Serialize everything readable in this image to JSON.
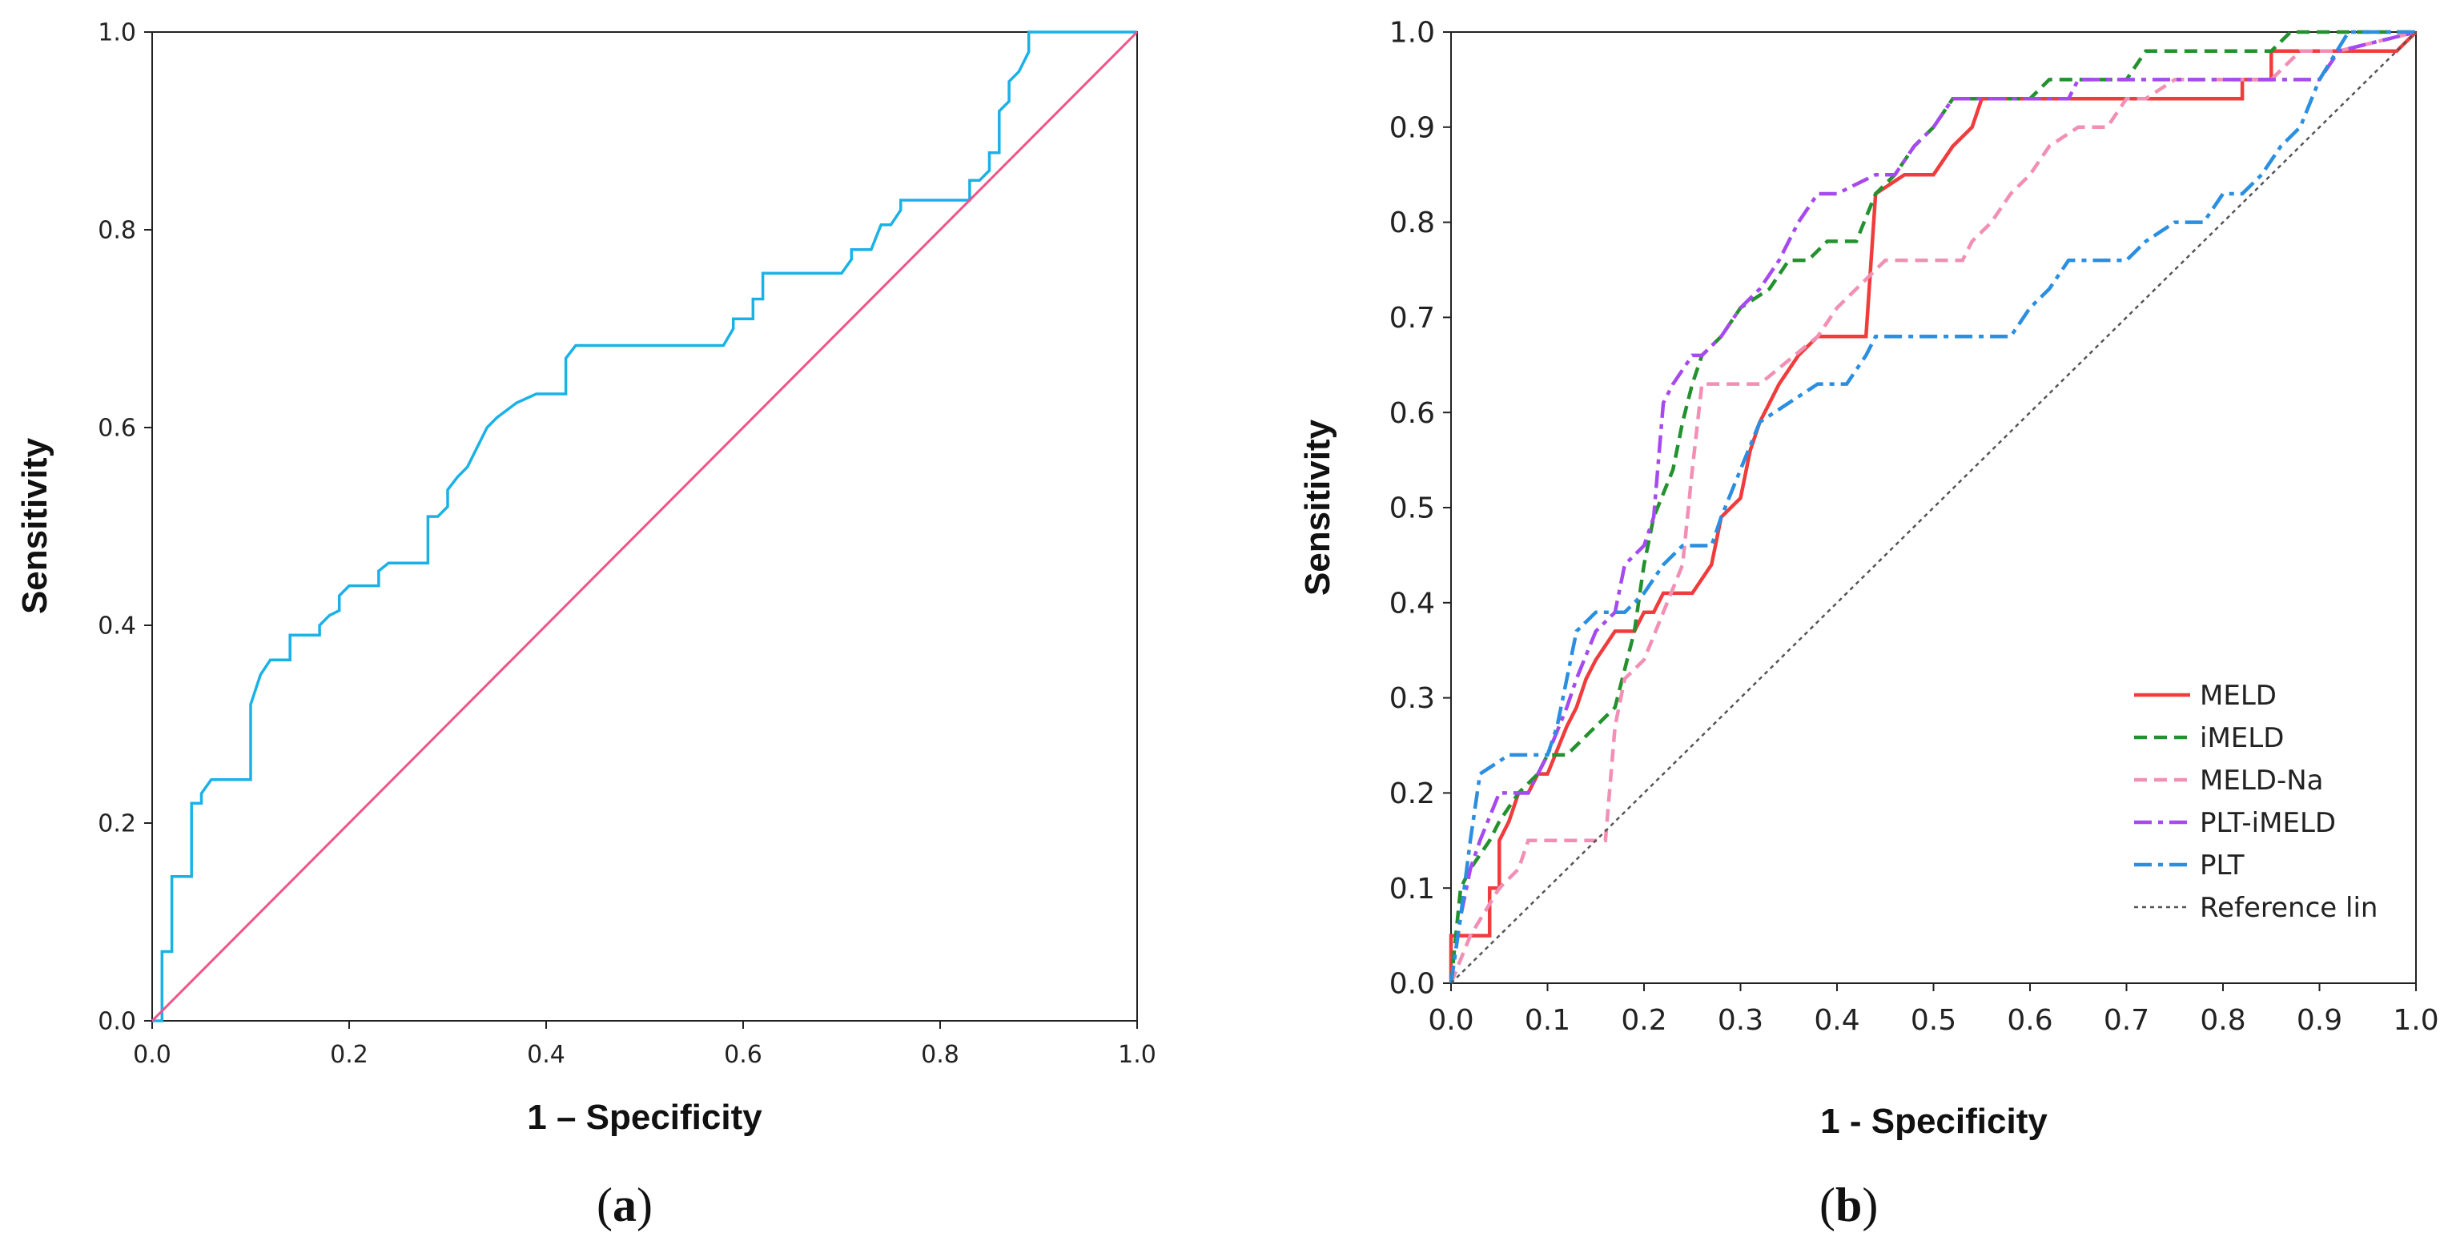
{
  "chart_data": [
    {
      "type": "line",
      "panel_caption_open": "(",
      "panel_caption_letter": "a",
      "panel_caption_close": ")",
      "xlabel": "1 – Specificity",
      "ylabel": "Sensitivity",
      "xlim": [
        0,
        1
      ],
      "ylim": [
        0,
        1
      ],
      "xticks": [
        "0.0",
        "0.2",
        "0.4",
        "0.6",
        "0.8",
        "1.0"
      ],
      "yticks": [
        "0.0",
        "0.2",
        "0.4",
        "0.6",
        "0.8",
        "1.0"
      ],
      "colors": {
        "roc": "#1ab2e6",
        "reference": "#f0548a"
      },
      "series": [
        {
          "name": "ROC",
          "x": [
            0.0,
            0.01,
            0.01,
            0.02,
            0.02,
            0.02,
            0.04,
            0.04,
            0.05,
            0.05,
            0.06,
            0.1,
            0.1,
            0.11,
            0.12,
            0.14,
            0.14,
            0.17,
            0.17,
            0.18,
            0.19,
            0.19,
            0.2,
            0.23,
            0.23,
            0.24,
            0.28,
            0.28,
            0.29,
            0.3,
            0.3,
            0.31,
            0.32,
            0.33,
            0.34,
            0.35,
            0.37,
            0.39,
            0.42,
            0.42,
            0.43,
            0.58,
            0.59,
            0.59,
            0.61,
            0.61,
            0.62,
            0.62,
            0.7,
            0.71,
            0.71,
            0.73,
            0.74,
            0.75,
            0.76,
            0.76,
            0.8,
            0.83,
            0.83,
            0.84,
            0.85,
            0.85,
            0.86,
            0.86,
            0.87,
            0.87,
            0.88,
            0.89,
            0.89,
            1.0
          ],
          "y": [
            0.0,
            0.0,
            0.07,
            0.07,
            0.1,
            0.146,
            0.146,
            0.22,
            0.22,
            0.23,
            0.244,
            0.244,
            0.32,
            0.35,
            0.365,
            0.365,
            0.39,
            0.39,
            0.4,
            0.41,
            0.415,
            0.43,
            0.44,
            0.44,
            0.455,
            0.463,
            0.463,
            0.51,
            0.51,
            0.52,
            0.537,
            0.55,
            0.56,
            0.58,
            0.6,
            0.61,
            0.625,
            0.634,
            0.634,
            0.67,
            0.683,
            0.683,
            0.7,
            0.71,
            0.71,
            0.73,
            0.73,
            0.756,
            0.756,
            0.77,
            0.78,
            0.78,
            0.805,
            0.805,
            0.82,
            0.83,
            0.83,
            0.83,
            0.85,
            0.85,
            0.86,
            0.878,
            0.878,
            0.92,
            0.93,
            0.95,
            0.96,
            0.98,
            1.0,
            1.0
          ]
        },
        {
          "name": "Reference",
          "x": [
            0,
            1
          ],
          "y": [
            0,
            1
          ]
        }
      ]
    },
    {
      "type": "line",
      "panel_caption_open": "(",
      "panel_caption_letter": "b",
      "panel_caption_close": ")",
      "xlabel": "1 - Specificity",
      "ylabel": "Sensitivity",
      "xlim": [
        0,
        1
      ],
      "ylim": [
        0,
        1
      ],
      "xticks": [
        "0.0",
        "0.1",
        "0.2",
        "0.3",
        "0.4",
        "0.5",
        "0.6",
        "0.7",
        "0.8",
        "0.9",
        "1.0"
      ],
      "yticks": [
        "0.0",
        "0.1",
        "0.2",
        "0.3",
        "0.4",
        "0.5",
        "0.6",
        "0.7",
        "0.8",
        "0.9",
        "1.0"
      ],
      "legend_position": "bottom-right",
      "series": [
        {
          "name": "MELD",
          "color": "#f03c3c",
          "dash": "solid",
          "x": [
            0.0,
            0.0,
            0.01,
            0.04,
            0.04,
            0.05,
            0.05,
            0.06,
            0.07,
            0.08,
            0.09,
            0.1,
            0.12,
            0.13,
            0.14,
            0.15,
            0.17,
            0.19,
            0.2,
            0.21,
            0.22,
            0.24,
            0.25,
            0.27,
            0.28,
            0.3,
            0.31,
            0.32,
            0.33,
            0.34,
            0.36,
            0.38,
            0.43,
            0.44,
            0.47,
            0.5,
            0.52,
            0.54,
            0.55,
            0.57,
            0.82,
            0.82,
            0.85,
            0.85,
            0.98,
            1.0
          ],
          "y": [
            0.0,
            0.05,
            0.05,
            0.05,
            0.1,
            0.1,
            0.15,
            0.17,
            0.2,
            0.2,
            0.22,
            0.22,
            0.27,
            0.29,
            0.32,
            0.34,
            0.37,
            0.37,
            0.39,
            0.39,
            0.41,
            0.41,
            0.41,
            0.44,
            0.49,
            0.51,
            0.56,
            0.59,
            0.61,
            0.63,
            0.66,
            0.68,
            0.68,
            0.83,
            0.85,
            0.85,
            0.88,
            0.9,
            0.93,
            0.93,
            0.93,
            0.95,
            0.95,
            0.98,
            0.98,
            1.0
          ]
        },
        {
          "name": "iMELD",
          "color": "#22912e",
          "dash": "dashed",
          "x": [
            0.0,
            0.01,
            0.02,
            0.04,
            0.05,
            0.07,
            0.09,
            0.1,
            0.12,
            0.15,
            0.17,
            0.19,
            0.2,
            0.21,
            0.23,
            0.24,
            0.25,
            0.26,
            0.28,
            0.3,
            0.33,
            0.35,
            0.37,
            0.39,
            0.42,
            0.44,
            0.46,
            0.48,
            0.5,
            0.52,
            0.6,
            0.62,
            0.7,
            0.72,
            0.85,
            0.87,
            1.0
          ],
          "y": [
            0.0,
            0.1,
            0.12,
            0.15,
            0.17,
            0.2,
            0.22,
            0.24,
            0.24,
            0.27,
            0.29,
            0.37,
            0.44,
            0.49,
            0.54,
            0.59,
            0.63,
            0.66,
            0.68,
            0.71,
            0.73,
            0.76,
            0.76,
            0.78,
            0.78,
            0.83,
            0.85,
            0.88,
            0.9,
            0.93,
            0.93,
            0.95,
            0.95,
            0.98,
            0.98,
            1.0,
            1.0
          ]
        },
        {
          "name": "MELD-Na",
          "color": "#f28fb5",
          "dash": "dashed",
          "x": [
            0.0,
            0.02,
            0.05,
            0.07,
            0.08,
            0.1,
            0.12,
            0.16,
            0.17,
            0.18,
            0.2,
            0.22,
            0.24,
            0.25,
            0.26,
            0.3,
            0.32,
            0.38,
            0.4,
            0.42,
            0.45,
            0.53,
            0.54,
            0.56,
            0.58,
            0.6,
            0.62,
            0.65,
            0.68,
            0.7,
            0.72,
            0.75,
            0.8,
            0.85,
            0.88,
            0.92,
            1.0
          ],
          "y": [
            0.0,
            0.05,
            0.1,
            0.12,
            0.15,
            0.15,
            0.15,
            0.15,
            0.27,
            0.32,
            0.34,
            0.39,
            0.44,
            0.54,
            0.63,
            0.63,
            0.63,
            0.68,
            0.71,
            0.73,
            0.76,
            0.76,
            0.78,
            0.8,
            0.83,
            0.85,
            0.88,
            0.9,
            0.9,
            0.93,
            0.93,
            0.95,
            0.95,
            0.95,
            0.98,
            0.98,
            1.0
          ]
        },
        {
          "name": "PLT-iMELD",
          "color": "#a64af0",
          "dash": "dashdot",
          "x": [
            0.0,
            0.01,
            0.02,
            0.03,
            0.05,
            0.08,
            0.09,
            0.1,
            0.12,
            0.13,
            0.15,
            0.17,
            0.18,
            0.2,
            0.21,
            0.22,
            0.23,
            0.25,
            0.26,
            0.28,
            0.3,
            0.32,
            0.34,
            0.36,
            0.38,
            0.4,
            0.44,
            0.46,
            0.48,
            0.5,
            0.52,
            0.54,
            0.64,
            0.65,
            0.9,
            0.92,
            1.0
          ],
          "y": [
            0.0,
            0.07,
            0.12,
            0.15,
            0.2,
            0.2,
            0.22,
            0.24,
            0.29,
            0.32,
            0.37,
            0.39,
            0.44,
            0.46,
            0.49,
            0.61,
            0.63,
            0.66,
            0.66,
            0.68,
            0.71,
            0.73,
            0.76,
            0.8,
            0.83,
            0.83,
            0.85,
            0.85,
            0.88,
            0.9,
            0.93,
            0.93,
            0.93,
            0.95,
            0.95,
            0.98,
            1.0
          ]
        },
        {
          "name": "PLT",
          "color": "#2a8fe0",
          "dash": "dashdot",
          "x": [
            0.0,
            0.01,
            0.02,
            0.03,
            0.06,
            0.1,
            0.11,
            0.13,
            0.15,
            0.18,
            0.2,
            0.22,
            0.24,
            0.27,
            0.28,
            0.3,
            0.32,
            0.35,
            0.38,
            0.41,
            0.43,
            0.44,
            0.57,
            0.58,
            0.6,
            0.62,
            0.64,
            0.7,
            0.72,
            0.75,
            0.78,
            0.8,
            0.82,
            0.84,
            0.86,
            0.88,
            0.9,
            0.93,
            1.0
          ],
          "y": [
            0.0,
            0.07,
            0.15,
            0.22,
            0.24,
            0.24,
            0.27,
            0.37,
            0.39,
            0.39,
            0.41,
            0.44,
            0.46,
            0.46,
            0.49,
            0.54,
            0.59,
            0.61,
            0.63,
            0.63,
            0.66,
            0.68,
            0.68,
            0.68,
            0.71,
            0.73,
            0.76,
            0.76,
            0.78,
            0.8,
            0.8,
            0.83,
            0.83,
            0.85,
            0.88,
            0.9,
            0.95,
            1.0,
            1.0
          ]
        },
        {
          "name": "Reference lin",
          "color": "#555555",
          "dash": "dotted",
          "x": [
            0,
            1
          ],
          "y": [
            0,
            1
          ]
        }
      ]
    }
  ]
}
